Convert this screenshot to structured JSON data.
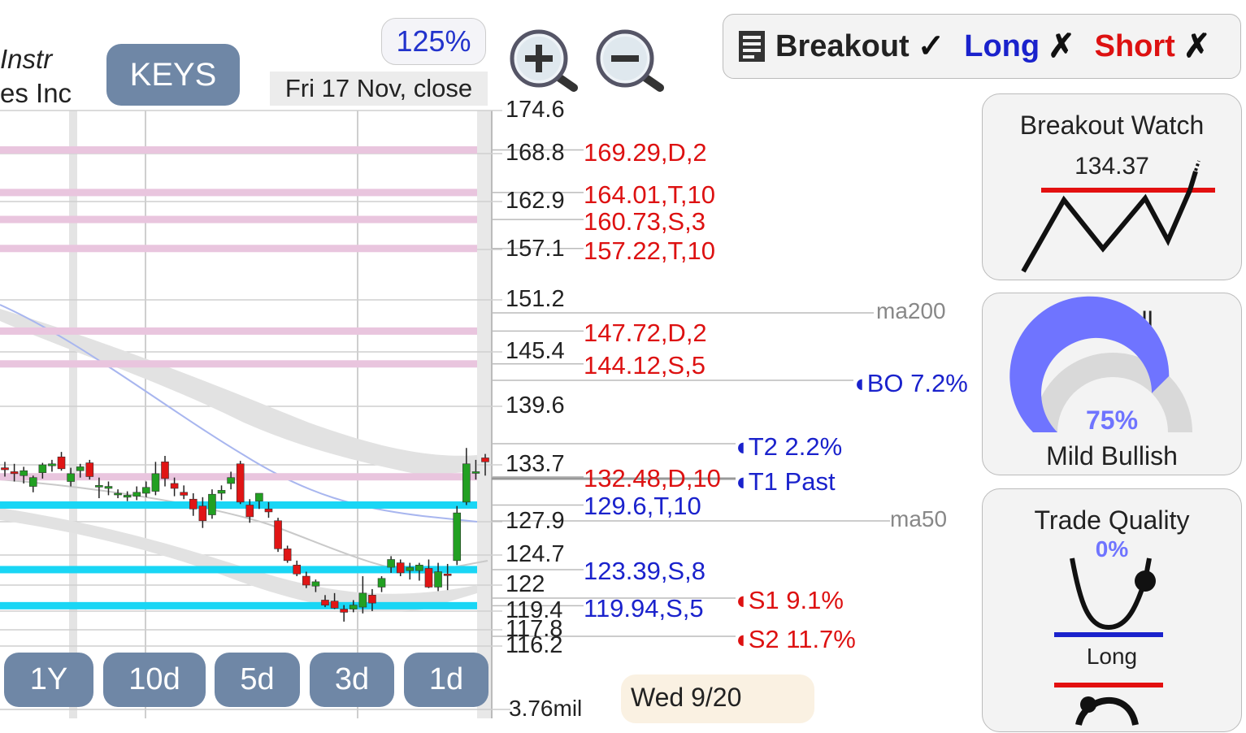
{
  "company": {
    "line1": "Instr",
    "line2": "es Inc"
  },
  "ticker": "KEYS",
  "zoom_level": "125%",
  "date_label": "Fri 17 Nov, close",
  "zoom_in_icon": "zoom-in-icon",
  "zoom_out_icon": "zoom-out-icon",
  "signals": {
    "breakout": {
      "label": "Breakout",
      "mark": "✓"
    },
    "long": {
      "label": "Long",
      "mark": "✗"
    },
    "short": {
      "label": "Short",
      "mark": "✗"
    }
  },
  "price_axis": [
    "174.6",
    "168.8",
    "162.9",
    "157.1",
    "151.2",
    "145.4",
    "139.6",
    "133.7",
    "127.9",
    "124.7",
    "122",
    "119.4",
    "117.8",
    "116.2"
  ],
  "volume_label": "3.76mil",
  "resistance_levels": [
    "169.29,D,2",
    "164.01,T,10",
    "160.73,S,3",
    "157.22,T,10",
    "147.72,D,2",
    "144.12,S,5",
    "132.48,D,10"
  ],
  "support_levels": [
    "129.6,T,10",
    "123.39,S,8",
    "119.94,S,5"
  ],
  "moving_averages": {
    "ma200": "ma200",
    "ma50": "ma50"
  },
  "targets": {
    "bo": "BO 7.2%",
    "t2": "T2 2.2%",
    "t1": "T1 Past",
    "s1": "S1 9.1%",
    "s2": "S2 11.7%"
  },
  "panels": {
    "breakout_watch": {
      "title": "Breakout Watch",
      "value": "134.37"
    },
    "overall": {
      "title": "Overall",
      "percent": "75%",
      "percent_value": 75,
      "label": "Mild Bullish"
    },
    "trade_quality": {
      "title": "Trade Quality",
      "percent": "0%",
      "label": "Long"
    }
  },
  "timeframes": [
    "1Y",
    "10d",
    "5d",
    "3d",
    "1d"
  ],
  "date_hint": "Wed 9/20",
  "colors": {
    "accent_blue": "#1a22cc",
    "resistance_red": "#dd1111",
    "support_band": "#19d6f5",
    "resistance_band": "#e9c5de",
    "button_slate": "#6f87a6",
    "candle_up": "#22a022",
    "candle_down": "#e01515",
    "gauge_fill": "#6f74ff"
  },
  "chart_data": {
    "type": "candlestick",
    "y_ticks": [
      174.6,
      168.8,
      162.9,
      157.1,
      151.2,
      145.4,
      139.6,
      133.7,
      127.9,
      124.7,
      122,
      119.4,
      117.8,
      116.2
    ],
    "resistance": [
      169.29,
      164.01,
      160.73,
      157.22,
      147.72,
      144.12,
      132.48
    ],
    "support": [
      129.6,
      123.39,
      119.94
    ],
    "last_close": 134.37,
    "candles": [
      {
        "o": 133.4,
        "h": 134.0,
        "l": 132.5,
        "c": 133.2
      },
      {
        "o": 133.0,
        "h": 133.8,
        "l": 132.0,
        "c": 132.8
      },
      {
        "o": 132.6,
        "h": 133.5,
        "l": 131.8,
        "c": 133.1
      },
      {
        "o": 131.5,
        "h": 132.6,
        "l": 130.9,
        "c": 132.4
      },
      {
        "o": 132.9,
        "h": 133.9,
        "l": 132.3,
        "c": 133.7
      },
      {
        "o": 133.6,
        "h": 134.2,
        "l": 133.0,
        "c": 133.8
      },
      {
        "o": 134.5,
        "h": 135.0,
        "l": 133.1,
        "c": 133.3
      },
      {
        "o": 132.0,
        "h": 133.4,
        "l": 131.5,
        "c": 132.8
      },
      {
        "o": 133.1,
        "h": 133.8,
        "l": 132.4,
        "c": 133.5
      },
      {
        "o": 133.9,
        "h": 134.2,
        "l": 132.2,
        "c": 132.5
      },
      {
        "o": 131.5,
        "h": 132.4,
        "l": 130.3,
        "c": 131.6
      },
      {
        "o": 131.3,
        "h": 132.0,
        "l": 130.6,
        "c": 131.5
      },
      {
        "o": 130.7,
        "h": 131.2,
        "l": 130.3,
        "c": 130.8
      },
      {
        "o": 130.4,
        "h": 131.0,
        "l": 130.0,
        "c": 130.6
      },
      {
        "o": 130.5,
        "h": 131.5,
        "l": 130.1,
        "c": 130.9
      },
      {
        "o": 130.8,
        "h": 132.0,
        "l": 130.4,
        "c": 131.4
      },
      {
        "o": 131.0,
        "h": 134.0,
        "l": 130.6,
        "c": 132.8
      },
      {
        "o": 134.0,
        "h": 134.6,
        "l": 131.5,
        "c": 132.3
      },
      {
        "o": 131.8,
        "h": 132.4,
        "l": 130.5,
        "c": 131.3
      },
      {
        "o": 130.9,
        "h": 131.6,
        "l": 130.2,
        "c": 130.6
      },
      {
        "o": 130.2,
        "h": 130.8,
        "l": 128.5,
        "c": 129.2
      },
      {
        "o": 129.5,
        "h": 130.4,
        "l": 127.3,
        "c": 128.0
      },
      {
        "o": 128.6,
        "h": 131.2,
        "l": 128.2,
        "c": 130.7
      },
      {
        "o": 130.8,
        "h": 131.6,
        "l": 130.1,
        "c": 131.1
      },
      {
        "o": 131.8,
        "h": 133.0,
        "l": 131.2,
        "c": 132.4
      },
      {
        "o": 133.8,
        "h": 134.1,
        "l": 129.7,
        "c": 129.9
      },
      {
        "o": 129.6,
        "h": 130.2,
        "l": 127.8,
        "c": 128.4
      },
      {
        "o": 130.0,
        "h": 130.8,
        "l": 129.2,
        "c": 130.8
      },
      {
        "o": 129.2,
        "h": 129.9,
        "l": 128.3,
        "c": 128.9
      },
      {
        "o": 128.0,
        "h": 128.3,
        "l": 125.0,
        "c": 125.3
      },
      {
        "o": 125.3,
        "h": 125.6,
        "l": 124.0,
        "c": 124.2
      },
      {
        "o": 123.8,
        "h": 124.2,
        "l": 122.8,
        "c": 123.0
      },
      {
        "o": 122.8,
        "h": 123.2,
        "l": 121.7,
        "c": 122.0
      },
      {
        "o": 121.9,
        "h": 122.5,
        "l": 121.3,
        "c": 122.3
      },
      {
        "o": 120.5,
        "h": 121.0,
        "l": 119.8,
        "c": 120.0
      },
      {
        "o": 120.4,
        "h": 121.2,
        "l": 119.6,
        "c": 119.7
      },
      {
        "o": 119.6,
        "h": 120.0,
        "l": 118.5,
        "c": 119.3
      },
      {
        "o": 119.6,
        "h": 120.5,
        "l": 119.3,
        "c": 120.0
      },
      {
        "o": 119.8,
        "h": 122.8,
        "l": 119.2,
        "c": 121.2
      },
      {
        "o": 121.0,
        "h": 121.6,
        "l": 119.4,
        "c": 120.2
      },
      {
        "o": 121.8,
        "h": 122.8,
        "l": 121.3,
        "c": 122.6
      },
      {
        "o": 123.6,
        "h": 124.6,
        "l": 123.1,
        "c": 124.3
      },
      {
        "o": 124.0,
        "h": 124.3,
        "l": 122.8,
        "c": 123.1
      },
      {
        "o": 123.3,
        "h": 124.0,
        "l": 122.5,
        "c": 123.6
      },
      {
        "o": 123.3,
        "h": 124.0,
        "l": 122.4,
        "c": 123.8
      },
      {
        "o": 123.5,
        "h": 124.3,
        "l": 121.7,
        "c": 121.8
      },
      {
        "o": 121.8,
        "h": 124.0,
        "l": 121.4,
        "c": 123.2
      },
      {
        "o": 123.0,
        "h": 123.9,
        "l": 121.5,
        "c": 122.9
      },
      {
        "o": 124.2,
        "h": 129.5,
        "l": 123.8,
        "c": 128.8
      },
      {
        "o": 129.9,
        "h": 135.4,
        "l": 129.6,
        "c": 133.8
      },
      {
        "o": 133.0,
        "h": 134.2,
        "l": 132.2,
        "c": 133.0
      },
      {
        "o": 134.4,
        "h": 134.8,
        "l": 132.6,
        "c": 134.0
      }
    ]
  }
}
